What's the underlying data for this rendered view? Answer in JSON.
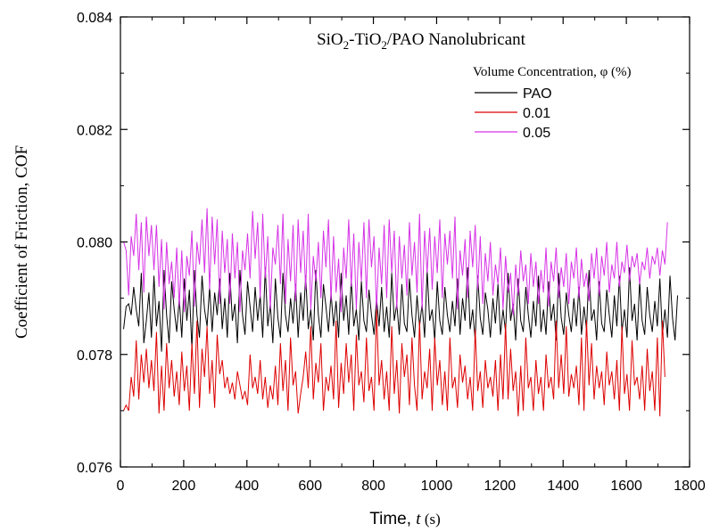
{
  "chart_data": {
    "type": "line",
    "title": {
      "parts": [
        {
          "text": "SiO",
          "sub": false
        },
        {
          "text": "2",
          "sub": true
        },
        {
          "text": "-TiO",
          "sub": false
        },
        {
          "text": "2",
          "sub": true
        },
        {
          "text": "/PAO Nanolubricant",
          "sub": false
        }
      ]
    },
    "xlabel": {
      "prefix": "Time, ",
      "var": "t",
      "unit": " (s)"
    },
    "ylabel": "Coefficient of Friction, COF",
    "xlim": [
      0,
      1800
    ],
    "ylim": [
      0.076,
      0.084
    ],
    "xticks": [
      "0",
      "200",
      "400",
      "600",
      "800",
      "1000",
      "1200",
      "1400",
      "1600",
      "1800"
    ],
    "yticks": [
      "0.076",
      "0.078",
      "0.080",
      "0.082",
      "0.084"
    ],
    "legend": {
      "title": "Volume Concentration, φ (%)",
      "placement": "top-right"
    },
    "sample_interval_s": 8,
    "series": [
      {
        "name": "PAO",
        "color": "#000000",
        "y": [
          0.07845,
          0.07885,
          0.0789,
          0.0787,
          0.0792,
          0.0788,
          0.0785,
          0.07945,
          0.0782,
          0.0786,
          0.0791,
          0.0783,
          0.0794,
          0.0785,
          0.07895,
          0.07805,
          0.0795,
          0.0787,
          0.0782,
          0.0793,
          0.0788,
          0.0784,
          0.079,
          0.0783,
          0.07935,
          0.0786,
          0.07915,
          0.0781,
          0.0795,
          0.0787,
          0.0783,
          0.0794,
          0.0788,
          0.0785,
          0.0792,
          0.0784,
          0.0791,
          0.0787,
          0.07935,
          0.07845,
          0.079,
          0.0783,
          0.07945,
          0.0786,
          0.0789,
          0.0782,
          0.0795,
          0.0787,
          0.07835,
          0.0793,
          0.07885,
          0.0784,
          0.0792,
          0.0786,
          0.07905,
          0.0783,
          0.07955,
          0.0785,
          0.0789,
          0.0782,
          0.07935,
          0.07865,
          0.0783,
          0.07945,
          0.0787,
          0.0784,
          0.079,
          0.07855,
          0.07925,
          0.0783,
          0.0791,
          0.0786,
          0.0794,
          0.07845,
          0.0788,
          0.07825,
          0.0795,
          0.0787,
          0.0783,
          0.07925,
          0.07885,
          0.0784,
          0.0791,
          0.0785,
          0.07895,
          0.0783,
          0.07945,
          0.0786,
          0.07905,
          0.07835,
          0.07935,
          0.0785,
          0.0788,
          0.07825,
          0.0793,
          0.0786,
          0.0784,
          0.07915,
          0.0787,
          0.07835,
          0.079,
          0.0785,
          0.0792,
          0.0784,
          0.07885,
          0.0783,
          0.07945,
          0.0786,
          0.0789,
          0.07835,
          0.07925,
          0.07855,
          0.0784,
          0.07935,
          0.0787,
          0.0783,
          0.07905,
          0.0785,
          0.0789,
          0.0783,
          0.0795,
          0.0786,
          0.0788,
          0.07825,
          0.0793,
          0.0786,
          0.07835,
          0.0792,
          0.0787,
          0.0784,
          0.07895,
          0.0785,
          0.07935,
          0.07835,
          0.079,
          0.0786,
          0.07955,
          0.07845,
          0.0788,
          0.07825,
          0.0794,
          0.07865,
          0.07835,
          0.0791,
          0.0788,
          0.0783,
          0.079,
          0.07855,
          0.07925,
          0.07835,
          0.0788,
          0.0784,
          0.07945,
          0.0786,
          0.0789,
          0.07825,
          0.07935,
          0.0786,
          0.0784,
          0.0792,
          0.0787,
          0.0783,
          0.07895,
          0.0785,
          0.0794,
          0.0784,
          0.0788,
          0.07835,
          0.0793,
          0.0786,
          0.0789,
          0.07825,
          0.07945,
          0.07865,
          0.07835,
          0.0791,
          0.0787,
          0.0784,
          0.079,
          0.0785,
          0.0792,
          0.07835,
          0.07885,
          0.07845,
          0.0795,
          0.0786,
          0.0788,
          0.07825,
          0.0793,
          0.07855,
          0.0784,
          0.07915,
          0.0787,
          0.0783,
          0.07905,
          0.0785,
          0.0794,
          0.0784,
          0.0788,
          0.0783,
          0.07955,
          0.0786,
          0.0789,
          0.07825,
          0.0793,
          0.0786,
          0.07835,
          0.0792,
          0.0787,
          0.0784,
          0.07895,
          0.0785,
          0.07935,
          0.07835,
          0.0788,
          0.0783,
          0.0794,
          0.07865,
          0.07825,
          0.07905
        ]
      },
      {
        "name": "0.01",
        "color": "#dd0000",
        "y": [
          0.077,
          0.0771,
          0.077,
          0.0776,
          0.07725,
          0.07825,
          0.0772,
          0.078,
          0.0775,
          0.0781,
          0.0774,
          0.0779,
          0.07735,
          0.0784,
          0.07695,
          0.0778,
          0.077,
          0.0782,
          0.0774,
          0.0779,
          0.07725,
          0.0777,
          0.0771,
          0.07805,
          0.07735,
          0.0778,
          0.077,
          0.0782,
          0.0773,
          0.0786,
          0.07705,
          0.0781,
          0.0776,
          0.0785,
          0.0773,
          0.0779,
          0.07705,
          0.07835,
          0.07765,
          0.0779,
          0.0774,
          0.0776,
          0.0773,
          0.0775,
          0.0772,
          0.0777,
          0.07745,
          0.0772,
          0.07735,
          0.0771,
          0.078,
          0.0774,
          0.0776,
          0.0773,
          0.0779,
          0.0772,
          0.0776,
          0.07705,
          0.07745,
          0.0772,
          0.0778,
          0.0771,
          0.0782,
          0.07735,
          0.0779,
          0.077,
          0.0783,
          0.07745,
          0.0777,
          0.07695,
          0.0773,
          0.0776,
          0.07805,
          0.0774,
          0.0785,
          0.0772,
          0.07785,
          0.0775,
          0.0782,
          0.077,
          0.0776,
          0.07735,
          0.0778,
          0.0772,
          0.0786,
          0.07705,
          0.07785,
          0.0773,
          0.0782,
          0.0775,
          0.078,
          0.077,
          0.07835,
          0.07745,
          0.0777,
          0.07715,
          0.0783,
          0.07735,
          0.0776,
          0.077,
          0.0788,
          0.07745,
          0.0779,
          0.0772,
          0.0777,
          0.077,
          0.0785,
          0.0773,
          0.0779,
          0.07695,
          0.0782,
          0.0776,
          0.078,
          0.0771,
          0.0783,
          0.07745,
          0.077,
          0.0786,
          0.0772,
          0.0777,
          0.0774,
          0.0781,
          0.077,
          0.0783,
          0.07745,
          0.0779,
          0.0771,
          0.0777,
          0.077,
          0.0783,
          0.0774,
          0.0776,
          0.07705,
          0.078,
          0.0775,
          0.0778,
          0.0772,
          0.0776,
          0.077,
          0.07845,
          0.07735,
          0.0777,
          0.07705,
          0.0779,
          0.0774,
          0.0776,
          0.07725,
          0.0779,
          0.077,
          0.078,
          0.0772,
          0.07855,
          0.0772,
          0.0781,
          0.07735,
          0.0777,
          0.0769,
          0.0778,
          0.077,
          0.0783,
          0.0774,
          0.0776,
          0.077,
          0.0779,
          0.0773,
          0.0776,
          0.077,
          0.078,
          0.0774,
          0.0776,
          0.0772,
          0.0786,
          0.0774,
          0.078,
          0.0773,
          0.0785,
          0.07725,
          0.07765,
          0.0774,
          0.0778,
          0.0771,
          0.0783,
          0.077,
          0.0786,
          0.07745,
          0.0782,
          0.0772,
          0.0778,
          0.0774,
          0.0777,
          0.0771,
          0.07805,
          0.07745,
          0.0777,
          0.0772,
          0.0779,
          0.077,
          0.0785,
          0.0773,
          0.07765,
          0.077,
          0.07825,
          0.07745,
          0.0776,
          0.0772,
          0.0778,
          0.077,
          0.0781,
          0.07735,
          0.0777,
          0.077,
          0.0783,
          0.0769,
          0.0786,
          0.0776
        ]
      },
      {
        "name": "0.05",
        "color": "#d633e6",
        "y": [
          0.08,
          0.07985,
          0.07905,
          0.0801,
          0.07975,
          0.0805,
          0.0795,
          0.08035,
          0.0791,
          0.08045,
          0.07975,
          0.0803,
          0.0795,
          0.0803,
          0.0792,
          0.08005,
          0.0788,
          0.08,
          0.07925,
          0.07965,
          0.079,
          0.0799,
          0.07885,
          0.07985,
          0.07875,
          0.07975,
          0.0794,
          0.0802,
          0.07885,
          0.08,
          0.0796,
          0.0804,
          0.07945,
          0.0806,
          0.07915,
          0.08045,
          0.0796,
          0.0804,
          0.0789,
          0.0802,
          0.07945,
          0.08005,
          0.0789,
          0.08015,
          0.07935,
          0.08,
          0.07875,
          0.07985,
          0.0795,
          0.08015,
          0.07935,
          0.08055,
          0.0797,
          0.08035,
          0.079,
          0.0805,
          0.07935,
          0.0801,
          0.0788,
          0.0799,
          0.0796,
          0.0803,
          0.07925,
          0.0805,
          0.0789,
          0.08005,
          0.0793,
          0.0803,
          0.07895,
          0.0804,
          0.07945,
          0.0802,
          0.07915,
          0.0805,
          0.0788,
          0.07975,
          0.0793,
          0.08,
          0.079,
          0.0802,
          0.07955,
          0.0804,
          0.07895,
          0.0801,
          0.0791,
          0.0797,
          0.07875,
          0.0799,
          0.07935,
          0.0804,
          0.0792,
          0.08015,
          0.0788,
          0.08,
          0.0793,
          0.08035,
          0.079,
          0.0804,
          0.07955,
          0.0801,
          0.0788,
          0.0799,
          0.07925,
          0.0803,
          0.079,
          0.0804,
          0.07945,
          0.0802,
          0.0788,
          0.0801,
          0.07935,
          0.07995,
          0.07905,
          0.08035,
          0.0794,
          0.08,
          0.0791,
          0.0805,
          0.0788,
          0.0802,
          0.07945,
          0.08025,
          0.07915,
          0.0801,
          0.07945,
          0.0804,
          0.079,
          0.08015,
          0.0796,
          0.0802,
          0.07935,
          0.08045,
          0.0788,
          0.07985,
          0.0794,
          0.08005,
          0.079,
          0.0802,
          0.07955,
          0.0803,
          0.07915,
          0.0801,
          0.0789,
          0.0798,
          0.0793,
          0.08,
          0.07905,
          0.0796,
          0.07925,
          0.0799,
          0.0788,
          0.07975,
          0.0791,
          0.07945,
          0.0787,
          0.0796,
          0.07905,
          0.07985,
          0.0793,
          0.0796,
          0.0789,
          0.0798,
          0.0792,
          0.07965,
          0.0789,
          0.0795,
          0.0791,
          0.0799,
          0.07885,
          0.07965,
          0.0793,
          0.0799,
          0.079,
          0.07955,
          0.0792,
          0.0798,
          0.0789,
          0.07965,
          0.07935,
          0.0799,
          0.079,
          0.0797,
          0.0792,
          0.07945,
          0.07895,
          0.0798,
          0.07935,
          0.0799,
          0.07905,
          0.07975,
          0.0794,
          0.08,
          0.0791,
          0.0796,
          0.07935,
          0.08,
          0.0792,
          0.07965,
          0.07945,
          0.07995,
          0.0793,
          0.07975,
          0.07955,
          0.0798,
          0.07925,
          0.07965,
          0.0795,
          0.0799,
          0.07935,
          0.07975,
          0.0796,
          0.0799,
          0.0794,
          0.07985,
          0.0796,
          0.08035
        ]
      }
    ]
  }
}
